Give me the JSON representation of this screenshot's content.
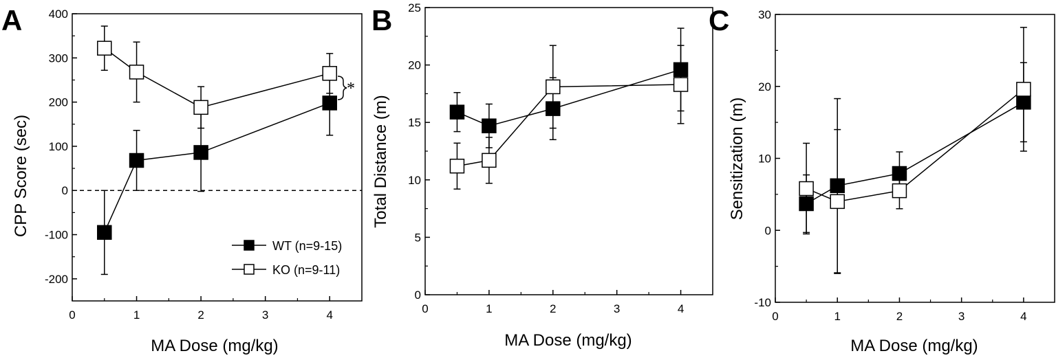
{
  "chart_data": [
    {
      "type": "line",
      "panel_label": "A",
      "xlabel": "MA Dose (mg/kg)",
      "ylabel": "CPP Score (sec)",
      "xlim": [
        0,
        4.5
      ],
      "ylim": [
        -250,
        400
      ],
      "xticks": [
        0,
        1,
        2,
        3,
        4
      ],
      "yticks": [
        -200,
        -100,
        0,
        100,
        200,
        300,
        400
      ],
      "reference_line": 0,
      "significance": "*",
      "legend": {
        "position": "bottom-right",
        "entries": [
          "WT (n=9-15)",
          "KO (n=9-11)"
        ]
      },
      "series": [
        {
          "name": "WT (n=9-15)",
          "marker": "filled-square",
          "x": [
            0.5,
            1,
            2,
            4
          ],
          "y": [
            -95,
            68,
            86,
            198
          ],
          "err": [
            95,
            68,
            88,
            73
          ]
        },
        {
          "name": "KO (n=9-11)",
          "marker": "open-square",
          "x": [
            0.5,
            1,
            2,
            4
          ],
          "y": [
            322,
            268,
            188,
            265
          ],
          "err": [
            50,
            68,
            47,
            45
          ]
        }
      ]
    },
    {
      "type": "line",
      "panel_label": "B",
      "xlabel": "MA Dose (mg/kg)",
      "ylabel": "Total Distance (m)",
      "xlim": [
        0,
        4.5
      ],
      "ylim": [
        0,
        25
      ],
      "xticks": [
        0,
        1,
        2,
        3,
        4
      ],
      "yticks": [
        0,
        5,
        10,
        15,
        20,
        25
      ],
      "series": [
        {
          "name": "WT",
          "marker": "filled-square",
          "x": [
            0.5,
            1,
            2,
            4
          ],
          "y": [
            15.9,
            14.7,
            16.2,
            19.6
          ],
          "err": [
            1.7,
            1.9,
            2.7,
            3.6
          ]
        },
        {
          "name": "KO",
          "marker": "open-square",
          "x": [
            0.5,
            1,
            2,
            4
          ],
          "y": [
            11.2,
            11.7,
            18.1,
            18.3
          ],
          "err": [
            2.0,
            2.0,
            3.6,
            3.4
          ]
        }
      ]
    },
    {
      "type": "line",
      "panel_label": "C",
      "xlabel": "MA Dose (mg/kg)",
      "ylabel": "Sensitization (m)",
      "xlim": [
        0,
        4.5
      ],
      "ylim": [
        -10,
        30
      ],
      "xticks": [
        0,
        1,
        2,
        3,
        4
      ],
      "yticks": [
        -10,
        0,
        10,
        20,
        30
      ],
      "series": [
        {
          "name": "WT",
          "marker": "filled-square",
          "x": [
            0.5,
            1,
            2,
            4
          ],
          "y": [
            3.7,
            6.2,
            7.9,
            17.8
          ],
          "err": [
            4.0,
            12.1,
            3.0,
            5.5
          ]
        },
        {
          "name": "KO",
          "marker": "open-square",
          "x": [
            0.5,
            1,
            2,
            4
          ],
          "y": [
            5.8,
            4.0,
            5.5,
            19.6
          ],
          "err": [
            6.3,
            10.0,
            2.5,
            8.6
          ]
        }
      ]
    }
  ]
}
